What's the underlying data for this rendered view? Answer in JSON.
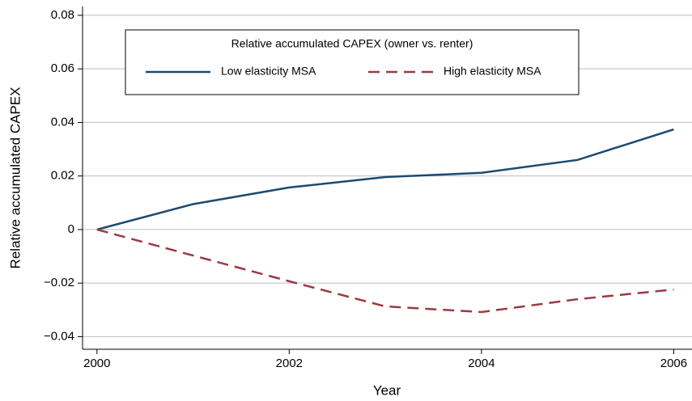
{
  "chart_data": {
    "type": "line",
    "x_label": "Year",
    "y_label": "Relative accumulated CAPEX",
    "legend_title": "Relative accumulated CAPEX (owner vs. renter)",
    "x": [
      2000,
      2001,
      2002,
      2003,
      2004,
      2005,
      2006
    ],
    "series": [
      {
        "name": "Low elasticity MSA",
        "color": "#1c4a72",
        "style": "solid",
        "values": [
          0,
          0.0095,
          0.0157,
          0.0196,
          0.0212,
          0.026,
          0.0374
        ]
      },
      {
        "name": "High elasticity MSA",
        "color": "#9b3a40",
        "style": "dashed",
        "values": [
          0,
          -0.0097,
          -0.0193,
          -0.0287,
          -0.0308,
          -0.026,
          -0.0224
        ]
      }
    ],
    "xlim": [
      1999.85,
      2006.19
    ],
    "xticks": [
      2000,
      2002,
      2004,
      2006
    ],
    "ylim": [
      -0.0447,
      0.0833
    ],
    "yticks": [
      {
        "value": -0.04,
        "label": "−0.04"
      },
      {
        "value": -0.02,
        "label": "−0.02"
      },
      0,
      0.02,
      0.04,
      0.06,
      0.08
    ],
    "grid": true
  }
}
